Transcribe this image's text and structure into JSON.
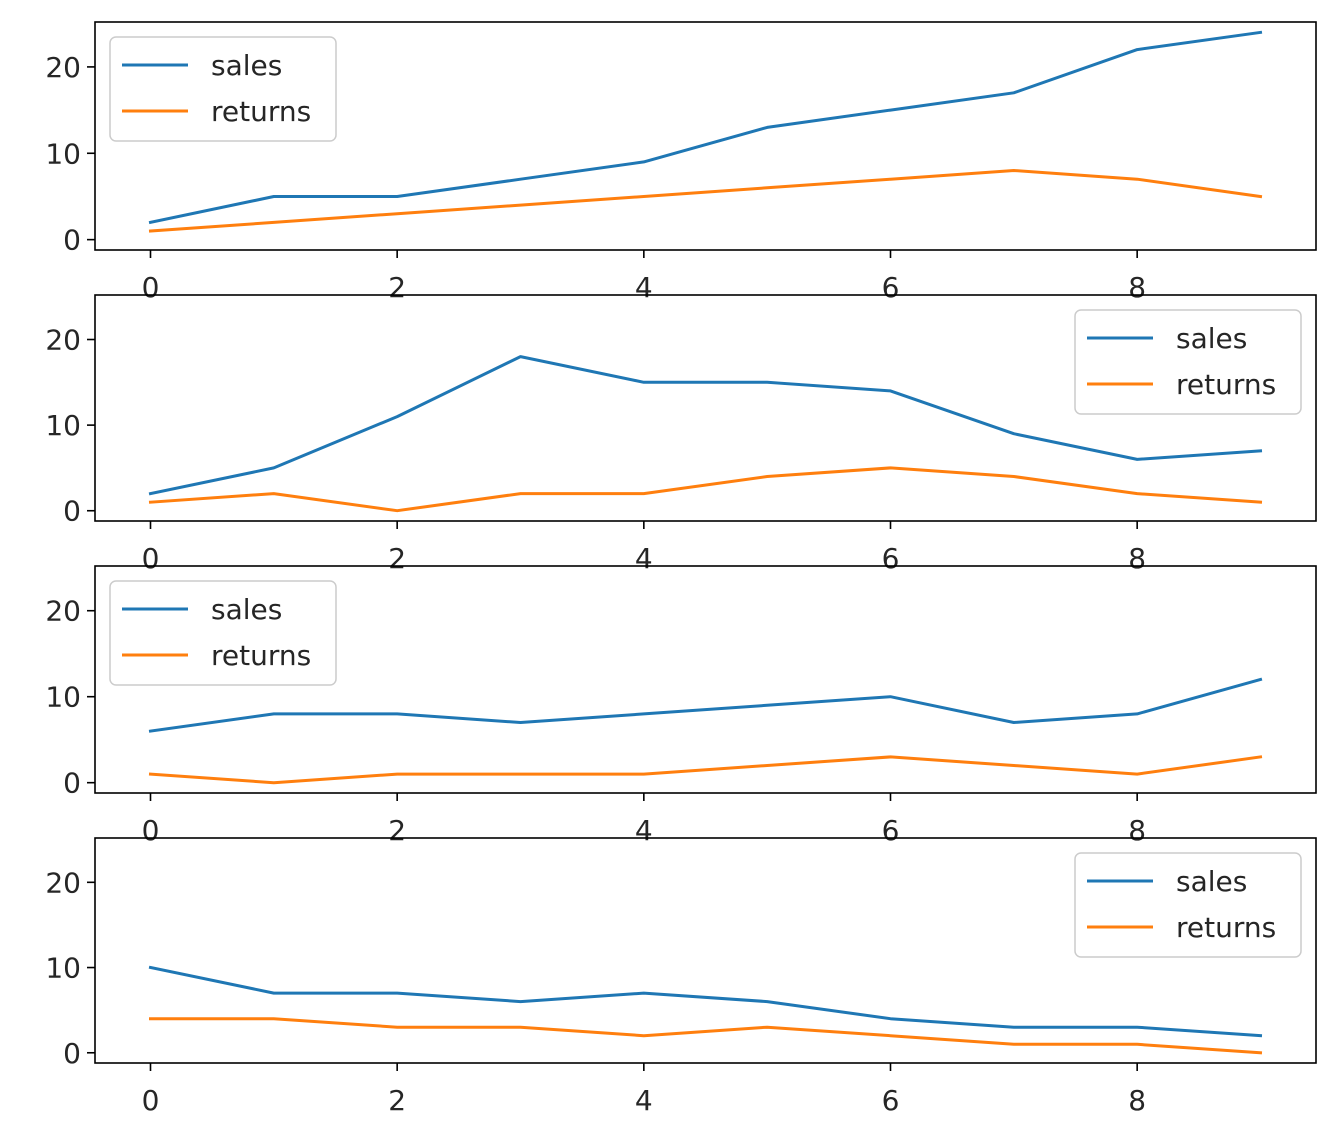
{
  "chart_data": [
    {
      "type": "line",
      "x": [
        0,
        1,
        2,
        3,
        4,
        5,
        6,
        7,
        8,
        9
      ],
      "series": [
        {
          "name": "sales",
          "color": "#1f77b4",
          "values": [
            2,
            5,
            5,
            7,
            9,
            13,
            15,
            17,
            22,
            24
          ]
        },
        {
          "name": "returns",
          "color": "#ff7f0e",
          "values": [
            1,
            2,
            3,
            4,
            5,
            6,
            7,
            8,
            7,
            5
          ]
        }
      ],
      "xlim": [
        -0.45,
        9.45
      ],
      "ylim": [
        -1.2,
        25.2
      ],
      "xticks": [
        "0",
        "2",
        "4",
        "6",
        "8"
      ],
      "yticks": [
        "0",
        "10",
        "20"
      ],
      "legend": "upper left",
      "grid": false,
      "title": "",
      "xlabel": "",
      "ylabel": ""
    },
    {
      "type": "line",
      "x": [
        0,
        1,
        2,
        3,
        4,
        5,
        6,
        7,
        8,
        9
      ],
      "series": [
        {
          "name": "sales",
          "color": "#1f77b4",
          "values": [
            2,
            5,
            11,
            18,
            15,
            15,
            14,
            9,
            6,
            7
          ]
        },
        {
          "name": "returns",
          "color": "#ff7f0e",
          "values": [
            1,
            2,
            0,
            2,
            2,
            4,
            5,
            4,
            2,
            1
          ]
        }
      ],
      "xlim": [
        -0.45,
        9.45
      ],
      "ylim": [
        -1.2,
        25.2
      ],
      "xticks": [
        "0",
        "2",
        "4",
        "6",
        "8"
      ],
      "yticks": [
        "0",
        "10",
        "20"
      ],
      "legend": "upper right",
      "grid": false,
      "title": "",
      "xlabel": "",
      "ylabel": ""
    },
    {
      "type": "line",
      "x": [
        0,
        1,
        2,
        3,
        4,
        5,
        6,
        7,
        8,
        9
      ],
      "series": [
        {
          "name": "sales",
          "color": "#1f77b4",
          "values": [
            6,
            8,
            8,
            7,
            8,
            9,
            10,
            7,
            8,
            12
          ]
        },
        {
          "name": "returns",
          "color": "#ff7f0e",
          "values": [
            1,
            0,
            1,
            1,
            1,
            2,
            3,
            2,
            1,
            3
          ]
        }
      ],
      "xlim": [
        -0.45,
        9.45
      ],
      "ylim": [
        -1.2,
        25.2
      ],
      "xticks": [
        "0",
        "2",
        "4",
        "6",
        "8"
      ],
      "yticks": [
        "0",
        "10",
        "20"
      ],
      "legend": "upper left",
      "grid": false,
      "title": "",
      "xlabel": "",
      "ylabel": ""
    },
    {
      "type": "line",
      "x": [
        0,
        1,
        2,
        3,
        4,
        5,
        6,
        7,
        8,
        9
      ],
      "series": [
        {
          "name": "sales",
          "color": "#1f77b4",
          "values": [
            10,
            7,
            7,
            6,
            7,
            6,
            4,
            3,
            3,
            2
          ]
        },
        {
          "name": "returns",
          "color": "#ff7f0e",
          "values": [
            4,
            4,
            3,
            3,
            2,
            3,
            2,
            1,
            1,
            0
          ]
        }
      ],
      "xlim": [
        -0.45,
        9.45
      ],
      "ylim": [
        -1.2,
        25.2
      ],
      "xticks": [
        "0",
        "2",
        "4",
        "6",
        "8"
      ],
      "yticks": [
        "0",
        "10",
        "20"
      ],
      "legend": "upper right",
      "grid": false,
      "title": "",
      "xlabel": "",
      "ylabel": ""
    }
  ]
}
